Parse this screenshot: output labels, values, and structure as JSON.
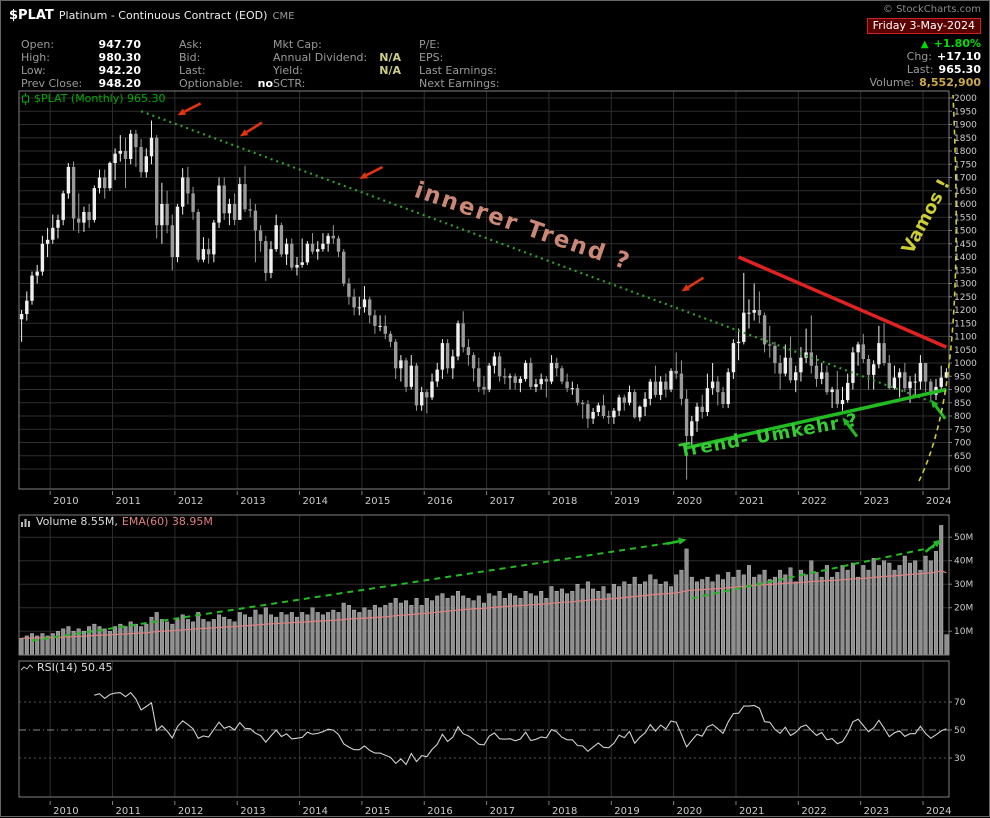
{
  "header": {
    "symbol": "$PLAT",
    "description": "Platinum - Continuous Contract (EOD)",
    "exchange": "CME",
    "watermark": "© StockCharts.com",
    "date": "Friday 3-May-2024",
    "pct_change": "+1.80%",
    "chg_label": "Chg:",
    "chg_value": "+17.10",
    "last_label": "Last:",
    "last_value": "965.30",
    "volume_label": "Volume:",
    "volume_value": "8,552,900"
  },
  "quote": {
    "open_label": "Open:",
    "open_value": "947.70",
    "high_label": "High:",
    "high_value": "980.30",
    "low_label": "Low:",
    "low_value": "942.20",
    "prev_close_label": "Prev Close:",
    "prev_close_value": "948.20",
    "ask_label": "Ask:",
    "bid_label": "Bid:",
    "last_label": "Last:",
    "optionable_label": "Optionable:",
    "optionable_value": "no",
    "mktcap_label": "Mkt Cap:",
    "annual_dividend_label": "Annual Dividend:",
    "annual_dividend_value": "N/A",
    "yield_label": "Yield:",
    "yield_value": "N/A",
    "sctr_label": "SCTR:",
    "pe_label": "P/E:",
    "eps_label": "EPS:",
    "last_earnings_label": "Last Earnings:",
    "next_earnings_label": "Next Earnings:"
  },
  "legends": {
    "main": "$PLAT (Monthly) 965.30",
    "volume": "Volume 8.55M,",
    "volume_ema": "EMA(60) 38.95M",
    "rsi": "RSI(14) 50.45"
  },
  "colors": {
    "background": "#000000",
    "border": "#808080",
    "grid": "#2e2e2e",
    "axis_text": "#cccccc",
    "candle_up": "#f0f0f0",
    "candle_down": "#9a9a9a",
    "volume_bar": "#8f8f8f",
    "volume_bar_edge": "#c8c8c8",
    "volume_ema": "#e08080",
    "rsi_line": "#d0d0d0",
    "legend_main": "#00aa00",
    "inner_trend": "#2f9e2f",
    "inner_trend_label": "#cc8877",
    "resistance": "#e02222",
    "reversal": "#22bb22",
    "reversal_label": "#33cc33",
    "vamos": "#cccc33",
    "arrow_red": "#e03311",
    "arrow_green": "#22bb22",
    "date_box_bg": "#5a0000",
    "date_box_border": "#cc2222",
    "pct_green": "#00dd00",
    "volume_value": "#ccaa44",
    "na_value": "#cccc88"
  },
  "chart_data": {
    "type": "candlestick",
    "title": "$PLAT (Monthly) 965.30",
    "symbol": "$PLAT",
    "timeframe": "Monthly",
    "start_month": "2009-07",
    "years": [
      2010,
      2011,
      2012,
      2013,
      2014,
      2015,
      2016,
      2017,
      2018,
      2019,
      2020,
      2021,
      2022,
      2023,
      2024
    ],
    "price_axis": {
      "min": 600,
      "max": 2000,
      "step": 50
    },
    "volume_axis": {
      "min": 0,
      "max": 55,
      "ticks": [
        10,
        20,
        30,
        40,
        50
      ],
      "unit": "M"
    },
    "rsi_axis": {
      "ticks": [
        30,
        50,
        70
      ]
    },
    "rsi_period": 14,
    "rsi_last": 50.45,
    "volume_ema_period": 60,
    "volume_last_label": "8.55M",
    "volume_ema_last_label": "38.95M",
    "high": [
      1200,
      1270,
      1345,
      1370,
      1480,
      1510,
      1560,
      1560,
      1650,
      1755,
      1760,
      1640,
      1590,
      1600,
      1670,
      1730,
      1730,
      1760,
      1810,
      1860,
      1850,
      1880,
      1880,
      1845,
      1810,
      1915,
      1860,
      1680,
      1650,
      1560,
      1600,
      1735,
      1740,
      1665,
      1580,
      1475,
      1470,
      1540,
      1700,
      1700,
      1620,
      1640,
      1700,
      1745,
      1620,
      1600,
      1520,
      1480,
      1460,
      1560,
      1530,
      1470,
      1470,
      1400,
      1470,
      1460,
      1490,
      1460,
      1490,
      1490,
      1520,
      1480,
      1430,
      1320,
      1280,
      1250,
      1290,
      1250,
      1200,
      1180,
      1180,
      1120,
      1090,
      1030,
      1020,
      1030,
      1000,
      910,
      900,
      960,
      1000,
      1090,
      1090,
      1050,
      1160,
      1195,
      1090,
      1040,
      1020,
      950,
      1000,
      1040,
      1040,
      980,
      960,
      960,
      950,
      1010,
      1020,
      940,
      960,
      950,
      1030,
      1020,
      990,
      960,
      930,
      920,
      860,
      860,
      830,
      850,
      880,
      820,
      830,
      880,
      880,
      915,
      900,
      840,
      890,
      940,
      990,
      950,
      960,
      980,
      1040,
      1010,
      900,
      800,
      850,
      880,
      960,
      1000,
      950,
      910,
      980,
      1090,
      1130,
      1340,
      1240,
      1300,
      1270,
      1190,
      1140,
      1080,
      1030,
      1070,
      1100,
      990,
      1060,
      1130,
      1180,
      1030,
      1000,
      990,
      910,
      970,
      910,
      960,
      1060,
      1080,
      1110,
      1030,
      1010,
      1140,
      1150,
      1030,
      990,
      980,
      1000,
      950,
      960,
      1030,
      1000,
      940,
      940,
      990,
      980.3
    ],
    "low": [
      1080,
      1160,
      1220,
      1300,
      1330,
      1400,
      1450,
      1470,
      1520,
      1620,
      1500,
      1490,
      1495,
      1510,
      1530,
      1640,
      1620,
      1650,
      1690,
      1760,
      1660,
      1750,
      1740,
      1700,
      1700,
      1750,
      1470,
      1450,
      1490,
      1350,
      1380,
      1560,
      1600,
      1540,
      1380,
      1380,
      1375,
      1380,
      1510,
      1540,
      1520,
      1520,
      1540,
      1570,
      1550,
      1380,
      1420,
      1310,
      1320,
      1420,
      1400,
      1370,
      1350,
      1330,
      1360,
      1370,
      1410,
      1390,
      1420,
      1420,
      1450,
      1400,
      1290,
      1220,
      1180,
      1180,
      1190,
      1150,
      1110,
      1120,
      1090,
      1060,
      940,
      930,
      890,
      900,
      820,
      820,
      810,
      860,
      910,
      940,
      960,
      940,
      1010,
      1040,
      990,
      930,
      890,
      880,
      890,
      960,
      930,
      920,
      900,
      900,
      890,
      930,
      900,
      890,
      900,
      870,
      920,
      950,
      920,
      890,
      880,
      840,
      790,
      755,
      770,
      800,
      790,
      770,
      770,
      800,
      820,
      840,
      790,
      780,
      800,
      840,
      870,
      860,
      870,
      890,
      940,
      840,
      560,
      690,
      740,
      790,
      800,
      880,
      840,
      830,
      830,
      940,
      1010,
      1070,
      1130,
      1160,
      1150,
      1040,
      1020,
      960,
      900,
      950,
      925,
      890,
      930,
      1000,
      960,
      910,
      920,
      880,
      830,
      830,
      820,
      850,
      900,
      990,
      1000,
      900,
      900,
      980,
      990,
      900,
      900,
      870,
      890,
      850,
      880,
      900,
      890,
      860,
      860,
      890,
      942.2
    ],
    "close": [
      1185,
      1235,
      1330,
      1345,
      1450,
      1465,
      1510,
      1540,
      1640,
      1740,
      1545,
      1530,
      1570,
      1540,
      1660,
      1700,
      1660,
      1755,
      1790,
      1800,
      1770,
      1865,
      1815,
      1720,
      1780,
      1850,
      1520,
      1600,
      1520,
      1400,
      1590,
      1700,
      1640,
      1570,
      1390,
      1430,
      1410,
      1530,
      1670,
      1565,
      1600,
      1540,
      1675,
      1580,
      1575,
      1500,
      1460,
      1340,
      1430,
      1520,
      1410,
      1450,
      1360,
      1370,
      1380,
      1450,
      1420,
      1430,
      1450,
      1480,
      1470,
      1420,
      1300,
      1250,
      1210,
      1210,
      1240,
      1180,
      1140,
      1140,
      1110,
      1080,
      980,
      1010,
      910,
      990,
      840,
      890,
      870,
      930,
      975,
      1075,
      980,
      1025,
      1150,
      1060,
      1030,
      980,
      910,
      900,
      990,
      1025,
      950,
      945,
      950,
      925,
      940,
      1000,
      910,
      920,
      940,
      930,
      1000,
      980,
      930,
      905,
      905,
      850,
      845,
      790,
      815,
      840,
      800,
      795,
      820,
      870,
      850,
      890,
      795,
      835,
      865,
      930,
      880,
      930,
      900,
      970,
      960,
      865,
      725,
      780,
      835,
      815,
      905,
      930,
      890,
      845,
      965,
      1075,
      1080,
      1190,
      1190,
      1200,
      1180,
      1070,
      1065,
      1000,
      960,
      1020,
      935,
      965,
      1020,
      1040,
      990,
      940,
      965,
      890,
      900,
      845,
      860,
      925,
      1040,
      1070,
      1015,
      955,
      995,
      1075,
      1000,
      905,
      945,
      965,
      905,
      930,
      930,
      1000,
      930,
      880,
      910,
      945,
      965.3
    ],
    "volume_m": [
      7,
      8,
      9,
      8,
      9,
      8,
      9,
      10,
      11,
      12,
      10,
      11,
      10,
      12,
      13,
      12,
      11,
      10,
      12,
      13,
      12,
      14,
      13,
      12,
      13,
      16,
      18,
      15,
      14,
      13,
      15,
      17,
      15,
      14,
      18,
      15,
      14,
      15,
      17,
      16,
      15,
      14,
      18,
      17,
      16,
      19,
      17,
      20,
      17,
      16,
      18,
      17,
      18,
      16,
      18,
      17,
      20,
      18,
      17,
      18,
      19,
      18,
      22,
      21,
      19,
      18,
      20,
      19,
      21,
      20,
      21,
      22,
      24,
      22,
      23,
      21,
      24,
      21,
      24,
      23,
      25,
      26,
      24,
      25,
      27,
      25,
      24,
      23,
      25,
      22,
      26,
      25,
      27,
      24,
      26,
      25,
      24,
      27,
      26,
      25,
      27,
      24,
      29,
      27,
      28,
      26,
      27,
      30,
      28,
      31,
      28,
      27,
      29,
      26,
      30,
      29,
      31,
      30,
      33,
      30,
      31,
      34,
      32,
      30,
      31,
      29,
      34,
      36,
      45,
      33,
      31,
      32,
      33,
      31,
      34,
      32,
      35,
      33,
      36,
      34,
      38,
      33,
      34,
      36,
      32,
      33,
      36,
      34,
      37,
      31,
      36,
      34,
      40,
      35,
      33,
      38,
      33,
      35,
      38,
      36,
      39,
      33,
      38,
      36,
      41,
      38,
      40,
      39,
      36,
      38,
      42,
      39,
      40,
      36,
      42,
      40,
      44,
      55,
      8.55
    ],
    "annotations": {
      "inner_trend_line": {
        "label": "innerer Trend ?",
        "style": "dotted",
        "from": {
          "month": "2011-06",
          "price": 1950
        },
        "to": {
          "month": "2024-02",
          "price": 855
        },
        "label_pos": {
          "month": "2017-07",
          "price": 1490
        },
        "label_angle": 19
      },
      "resistance_line": {
        "from": {
          "month": "2021-01",
          "price": 1400
        },
        "to": {
          "month": "2024-05",
          "price": 1060
        }
      },
      "reversal_line": {
        "label": "Trend- Umkehr ?",
        "from": {
          "month": "2020-03",
          "price": 680
        },
        "to": {
          "month": "2024-05",
          "price": 900
        },
        "label_pos": {
          "month": "2021-07",
          "price": 705
        },
        "label_angle": -10
      },
      "vamos_label": {
        "label": "Vamos !",
        "angle": -62
      },
      "red_arrows": [
        {
          "month": "2012-01",
          "price": 1935,
          "angle": 207
        },
        {
          "month": "2013-01",
          "price": 1855,
          "angle": 212
        },
        {
          "month": "2014-12",
          "price": 1695,
          "angle": 207
        },
        {
          "month": "2020-02",
          "price": 1270,
          "angle": 212
        }
      ],
      "green_arrows": [
        {
          "month": "2022-09",
          "price": 795,
          "angle": 127
        },
        {
          "month": "2024-02",
          "price": 862,
          "angle": 127
        }
      ],
      "volume_trend_lines": [
        {
          "from": {
            "month": "2009-09",
            "vol": 6
          },
          "to": {
            "month": "2020-01",
            "vol": 48
          }
        },
        {
          "from": {
            "month": "2020-04",
            "vol": 24
          },
          "to": {
            "month": "2024-03",
            "vol": 46
          }
        }
      ],
      "volume_arrows": [
        {
          "month": "2020-03",
          "vol": 49,
          "angle": 12
        },
        {
          "month": "2024-04",
          "vol": 49,
          "angle": 38
        }
      ]
    }
  }
}
